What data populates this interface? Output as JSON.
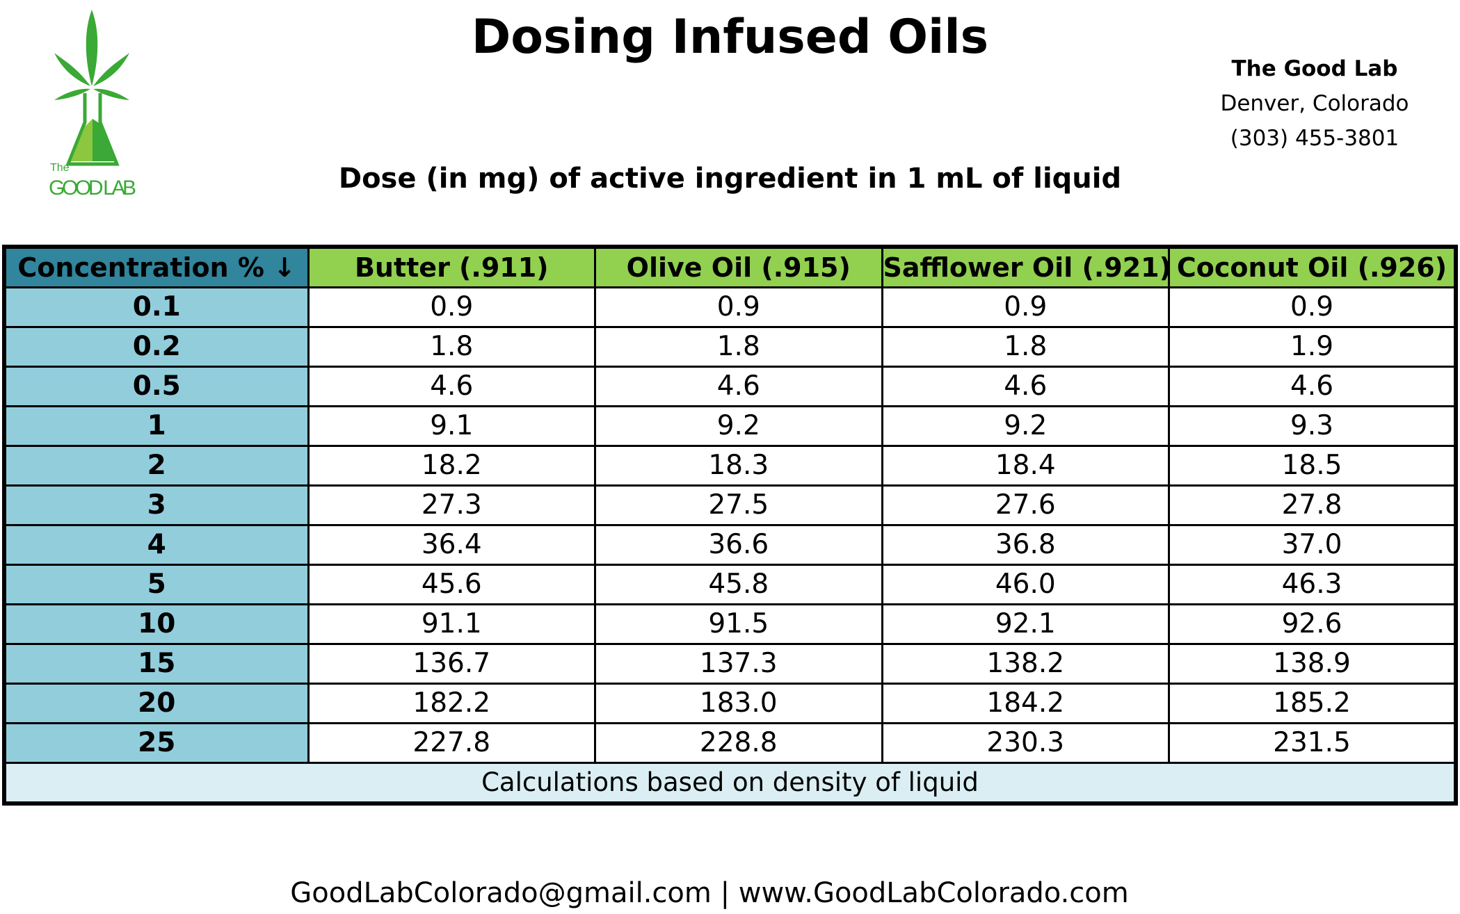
{
  "logo": {
    "small": "The",
    "text": "GOOD LAB"
  },
  "header": {
    "title": "Dosing Infused Oils",
    "subtitle": "Dose (in mg) of active ingredient in 1 mL of liquid"
  },
  "company": {
    "name": "The Good Lab",
    "location": "Denver, Colorado",
    "phone": "(303) 455-3801"
  },
  "table": {
    "header": [
      "Concentration % ↓",
      "Butter (.911)",
      "Olive Oil (.915)",
      "Safflower Oil (.921)",
      "Coconut Oil (.926)"
    ],
    "rows": [
      [
        "0.1",
        "0.9",
        "0.9",
        "0.9",
        "0.9"
      ],
      [
        "0.2",
        "1.8",
        "1.8",
        "1.8",
        "1.9"
      ],
      [
        "0.5",
        "4.6",
        "4.6",
        "4.6",
        "4.6"
      ],
      [
        "1",
        "9.1",
        "9.2",
        "9.2",
        "9.3"
      ],
      [
        "2",
        "18.2",
        "18.3",
        "18.4",
        "18.5"
      ],
      [
        "3",
        "27.3",
        "27.5",
        "27.6",
        "27.8"
      ],
      [
        "4",
        "36.4",
        "36.6",
        "36.8",
        "37.0"
      ],
      [
        "5",
        "45.6",
        "45.8",
        "46.0",
        "46.3"
      ],
      [
        "10",
        "91.1",
        "91.5",
        "92.1",
        "92.6"
      ],
      [
        "15",
        "136.7",
        "137.3",
        "138.2",
        "138.9"
      ],
      [
        "20",
        "182.2",
        "183.0",
        "184.2",
        "185.2"
      ],
      [
        "25",
        "227.8",
        "228.8",
        "230.3",
        "231.5"
      ]
    ],
    "note": "Calculations based on density of liquid"
  },
  "footer": {
    "contact": "GoodLabColorado@gmail.com | www.GoodLabColorado.com"
  }
}
